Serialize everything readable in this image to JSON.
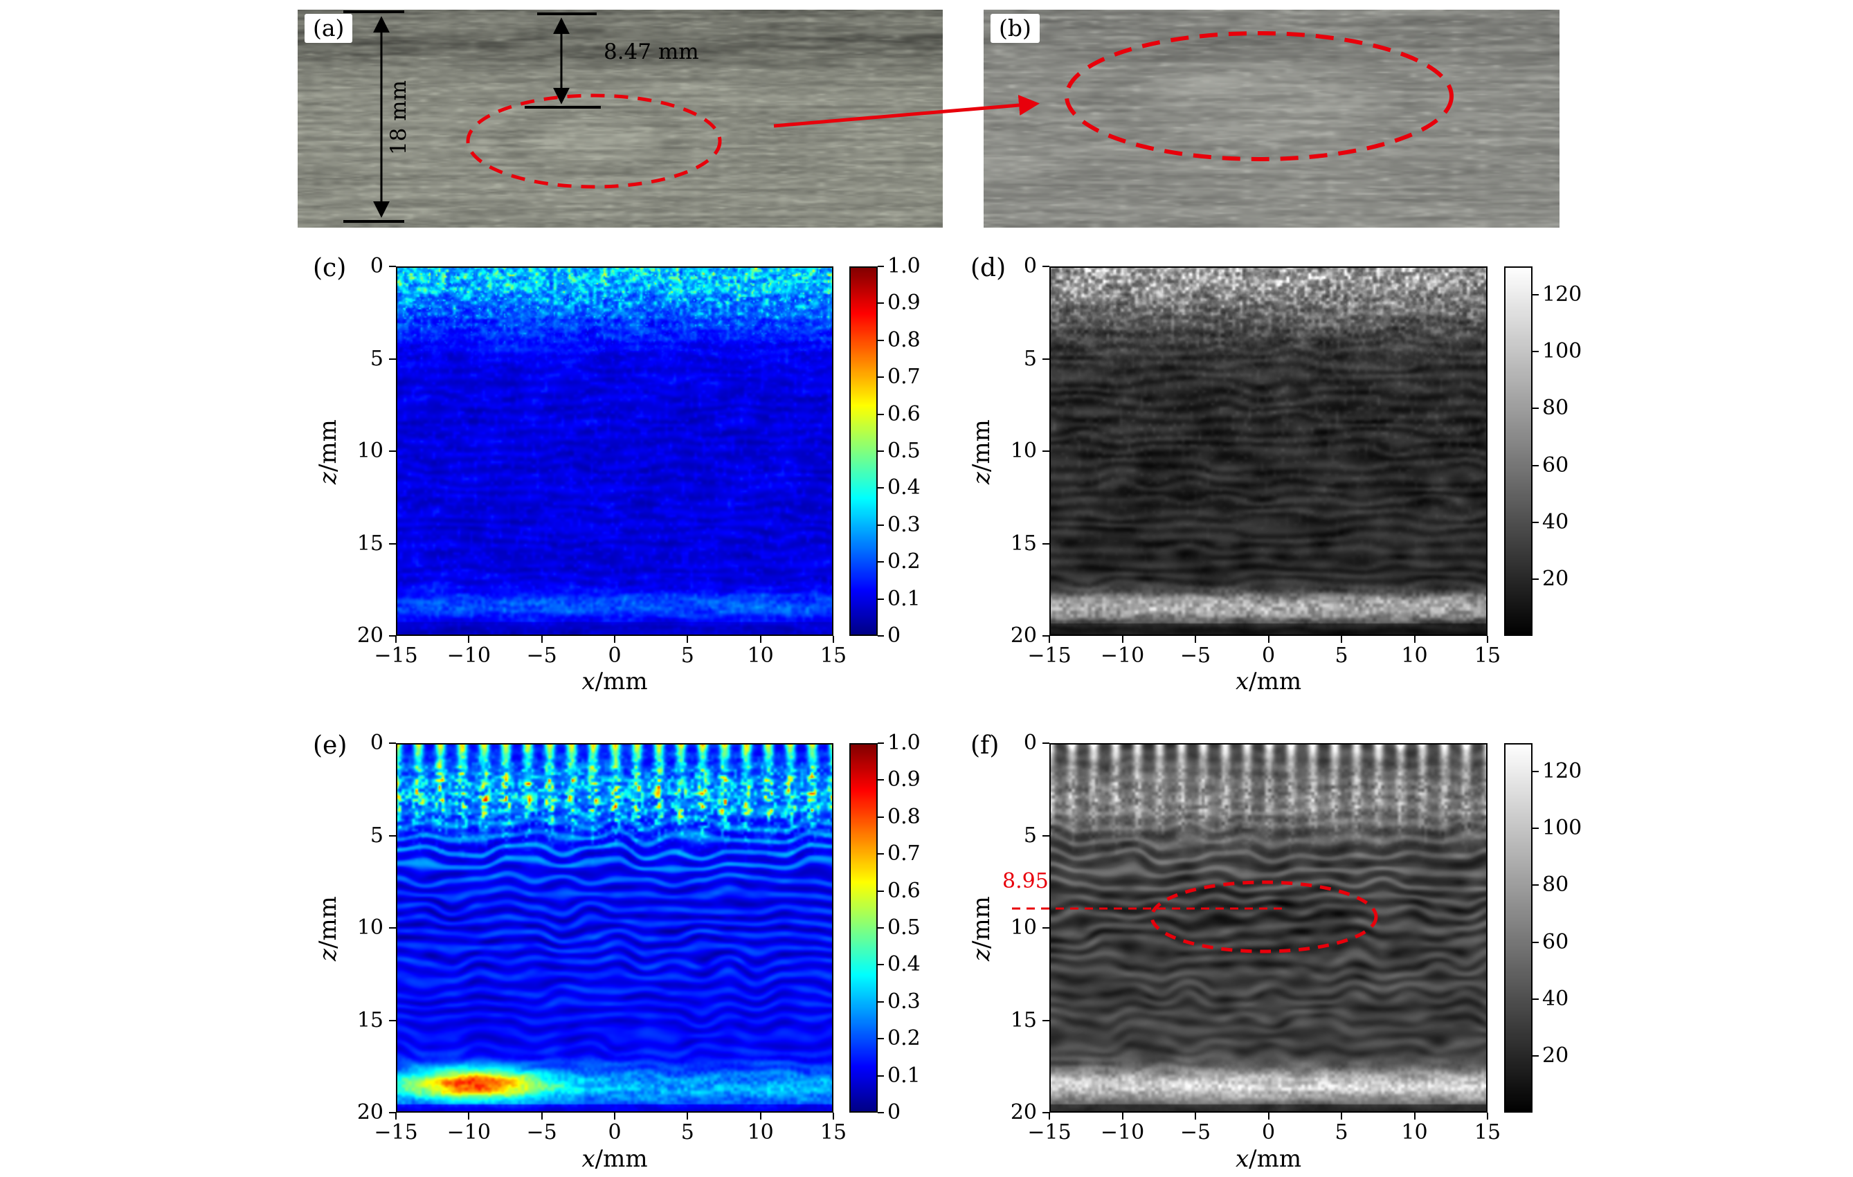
{
  "annotation_colors": {
    "red": "#e8000b",
    "black": "#000000"
  },
  "photo_panels": {
    "a": {
      "label": "(a)",
      "thickness_label": "18 mm",
      "defect_depth_label": "8.47 mm"
    },
    "b": {
      "label": "(b)"
    }
  },
  "plot_panels": {
    "c": {
      "label": "(c)",
      "xlabel_var": "x",
      "xlabel_unit": "/mm",
      "ylabel_var": "z",
      "ylabel_unit": "/mm",
      "xticks": [
        "−15",
        "−10",
        "−5",
        "0",
        "5",
        "10",
        "15"
      ],
      "yticks": [
        "0",
        "5",
        "10",
        "15",
        "20"
      ],
      "colorbar": {
        "colormap": "jet",
        "range": [
          0,
          1
        ],
        "values": [
          1,
          0.9,
          0.8,
          0.7,
          0.6,
          0.5,
          0.4,
          0.3,
          0.2,
          0.1,
          0
        ],
        "labels": [
          "1.0",
          "0.9",
          "0.8",
          "0.7",
          "0.6",
          "0.5",
          "0.4",
          "0.3",
          "0.2",
          "0.1",
          "0"
        ]
      }
    },
    "d": {
      "label": "(d)",
      "xlabel_var": "x",
      "xlabel_unit": "/mm",
      "ylabel_var": "z",
      "ylabel_unit": "/mm",
      "xticks": [
        "−15",
        "−10",
        "−5",
        "0",
        "5",
        "10",
        "15"
      ],
      "yticks": [
        "0",
        "5",
        "10",
        "15",
        "20"
      ],
      "colorbar": {
        "colormap": "gray",
        "range": [
          0,
          130
        ],
        "values": [
          120,
          100,
          80,
          60,
          40,
          20
        ],
        "labels": [
          "120",
          "100",
          "80",
          "60",
          "40",
          "20"
        ]
      }
    },
    "e": {
      "label": "(e)",
      "xlabel_var": "x",
      "xlabel_unit": "/mm",
      "ylabel_var": "z",
      "ylabel_unit": "/mm",
      "xticks": [
        "−15",
        "−10",
        "−5",
        "0",
        "5",
        "10",
        "15"
      ],
      "yticks": [
        "0",
        "5",
        "10",
        "15",
        "20"
      ],
      "colorbar": {
        "colormap": "jet",
        "range": [
          0,
          1
        ],
        "values": [
          1,
          0.9,
          0.8,
          0.7,
          0.6,
          0.5,
          0.4,
          0.3,
          0.2,
          0.1,
          0
        ],
        "labels": [
          "1.0",
          "0.9",
          "0.8",
          "0.7",
          "0.6",
          "0.5",
          "0.4",
          "0.3",
          "0.2",
          "0.1",
          "0"
        ]
      }
    },
    "f": {
      "label": "(f)",
      "xlabel_var": "x",
      "xlabel_unit": "/mm",
      "ylabel_var": "z",
      "ylabel_unit": "/mm",
      "xticks": [
        "−15",
        "−10",
        "−5",
        "0",
        "5",
        "10",
        "15"
      ],
      "yticks": [
        "0",
        "5",
        "10",
        "15",
        "20"
      ],
      "colorbar": {
        "colormap": "gray",
        "range": [
          0,
          130
        ],
        "values": [
          120,
          100,
          80,
          60,
          40,
          20
        ],
        "labels": [
          "120",
          "100",
          "80",
          "60",
          "40",
          "20"
        ]
      },
      "annotations": {
        "depth_label": "8.95",
        "depth_mm": 8.95,
        "ellipse": {
          "cx_mm": -0.3,
          "cz_mm": 9.4,
          "rx_mm": 7.8,
          "rz_mm": 1.8
        }
      }
    }
  },
  "chart_data": [
    {
      "id": "c",
      "type": "heatmap",
      "xlabel": "x/mm",
      "ylabel": "z/mm",
      "x_range": [
        -15,
        15
      ],
      "z_range": [
        0,
        20
      ],
      "z_axis_inverted": true,
      "colormap": "jet",
      "colorbar_range": [
        0,
        1
      ],
      "colorbar_ticks": [
        0,
        0.1,
        0.2,
        0.3,
        0.4,
        0.5,
        0.6,
        0.7,
        0.8,
        0.9,
        1.0
      ],
      "xticks": [
        -15,
        -10,
        -5,
        0,
        5,
        10,
        15
      ],
      "zticks": [
        0,
        5,
        10,
        15,
        20
      ],
      "description": "Normalized ultrasonic image of wood specimen: predominantly low amplitude (deep blue), cyan/green near-surface speckle in top 0–4 mm, faint horizontal striations at mid depth, and a brighter blue/cyan back-wall band near z ≈ 18.5 mm."
    },
    {
      "id": "d",
      "type": "heatmap",
      "xlabel": "x/mm",
      "ylabel": "z/mm",
      "x_range": [
        -15,
        15
      ],
      "z_range": [
        0,
        20
      ],
      "z_axis_inverted": true,
      "colormap": "gray",
      "colorbar_range": [
        0,
        130
      ],
      "colorbar_ticks": [
        20,
        40,
        60,
        80,
        100,
        120
      ],
      "xticks": [
        -15,
        -10,
        -5,
        0,
        5,
        10,
        15
      ],
      "zticks": [
        0,
        5,
        10,
        15,
        20
      ],
      "description": "Grayscale counterpart of panel (c): bright speckle in top 0–4 mm, nearly black mid-depth region with faint texture, bright gray back-wall band near z ≈ 18.5 mm."
    },
    {
      "id": "e",
      "type": "heatmap",
      "xlabel": "x/mm",
      "ylabel": "z/mm",
      "x_range": [
        -15,
        15
      ],
      "z_range": [
        0,
        20
      ],
      "z_axis_inverted": true,
      "colormap": "jet",
      "colorbar_range": [
        0,
        1
      ],
      "colorbar_ticks": [
        0,
        0.1,
        0.2,
        0.3,
        0.4,
        0.5,
        0.6,
        0.7,
        0.8,
        0.9,
        1.0
      ],
      "xticks": [
        -15,
        -10,
        -5,
        0,
        5,
        10,
        15
      ],
      "zticks": [
        0,
        5,
        10,
        15,
        20
      ],
      "description": "Normalized image with strong columnar speckle (red/yellow/cyan dots about every 1.5 mm in x) in top 0–5 mm, layered horizontal cyan striations through depth, and a bright yellow-orange back-wall response near z ≈ 18.5 mm strongest on the left side."
    },
    {
      "id": "f",
      "type": "heatmap",
      "xlabel": "x/mm",
      "ylabel": "z/mm",
      "x_range": [
        -15,
        15
      ],
      "z_range": [
        0,
        20
      ],
      "z_axis_inverted": true,
      "colormap": "gray",
      "colorbar_range": [
        0,
        130
      ],
      "colorbar_ticks": [
        20,
        40,
        60,
        80,
        100,
        120
      ],
      "xticks": [
        -15,
        -10,
        -5,
        0,
        5,
        10,
        15
      ],
      "zticks": [
        0,
        5,
        10,
        15,
        20
      ],
      "annotations": {
        "depth_line_mm": 8.95,
        "depth_line_label": "8.95",
        "defect_ellipse": {
          "cx_mm": -0.3,
          "cz_mm": 9.4,
          "rx_mm": 7.8,
          "rz_mm": 1.8
        }
      },
      "description": "Grayscale image with periodic near-surface reverberation comb (white tips about every 1.5 mm), horizontal layered striations, a red dashed ellipse marking the defect centered near x ≈ 0, z ≈ 9.4 mm, a red dashed depth line at z = 8.95 mm, and a bright back-wall band near z ≈ 18.5 mm."
    }
  ]
}
